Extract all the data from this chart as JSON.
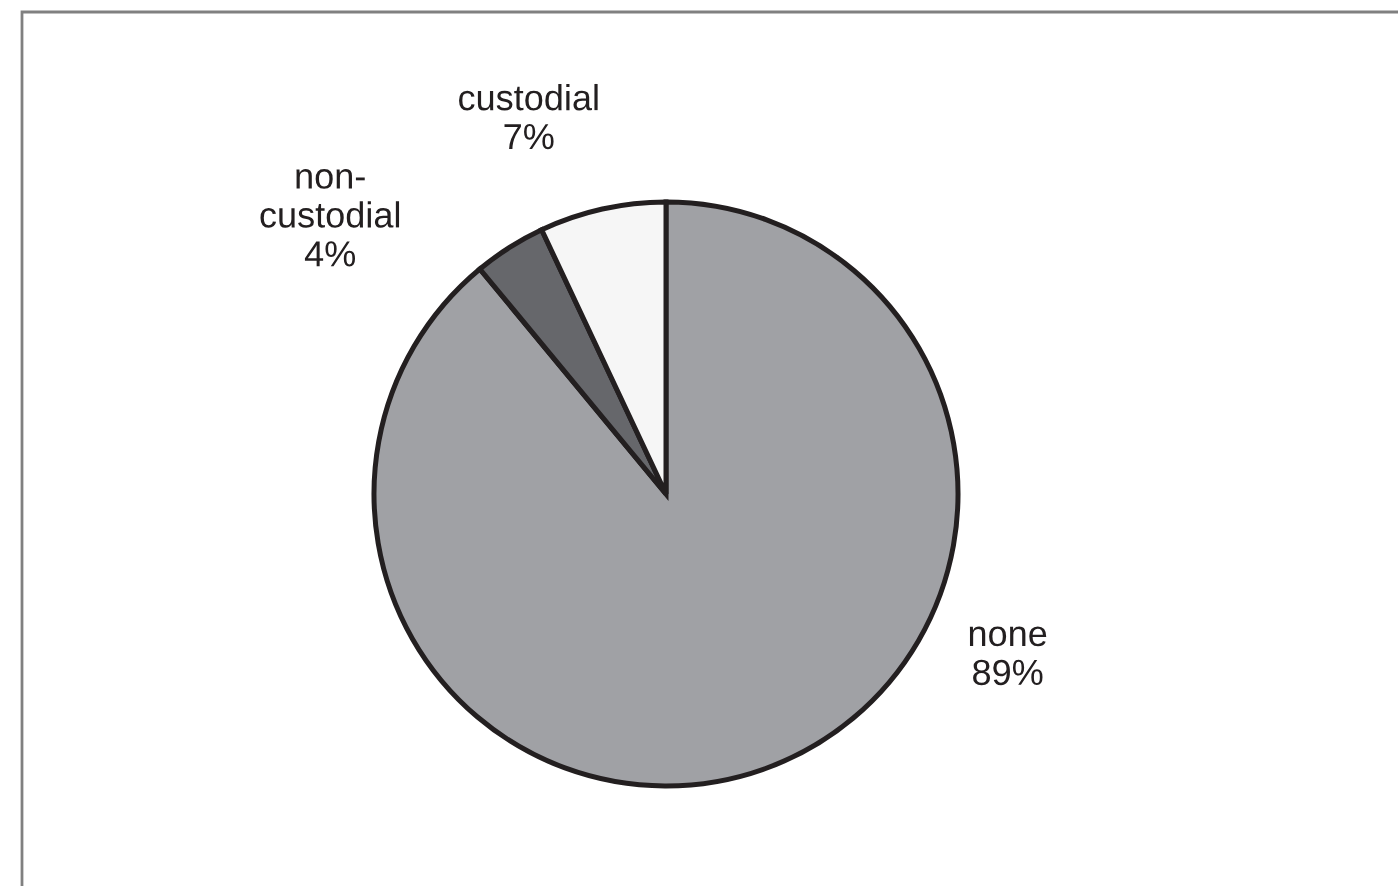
{
  "chart_data": {
    "type": "pie",
    "categories": [
      "none",
      "non-custodial",
      "custodial"
    ],
    "values": [
      89,
      4,
      7
    ],
    "colors": [
      "#a0a1a5",
      "#66676b",
      "#f6f6f6"
    ],
    "value_labels": [
      "89%",
      "4%",
      "7%"
    ]
  }
}
